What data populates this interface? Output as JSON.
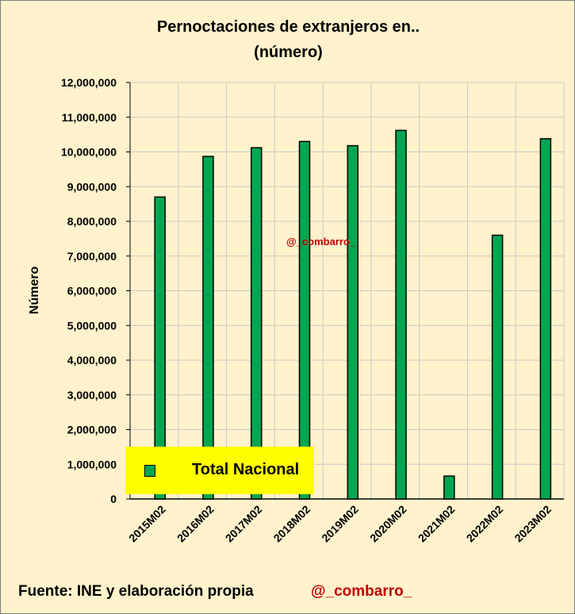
{
  "title_line1": "Pernoctaciones de extranjeros en..",
  "title_line2": "(número)",
  "footer_source": "Fuente: INE  y elaboración propia",
  "footer_handle": "@_combarro_",
  "watermark": "@_combarro_",
  "colors": {
    "background": "#FFF2CC",
    "bar_fill": "#00A650",
    "legend_background": "#FFFF00",
    "handle": "#C00000",
    "grid": "#C8C8C8"
  },
  "chart_data": {
    "type": "bar",
    "title": "Pernoctaciones de extranjeros en.. (número)",
    "ylabel": "Número",
    "xlabel": "",
    "ylim": [
      0,
      12000000
    ],
    "yticks": [
      "0",
      "1,000,000",
      "2,000,000",
      "3,000,000",
      "4,000,000",
      "5,000,000",
      "6,000,000",
      "7,000,000",
      "8,000,000",
      "9,000,000",
      "10,000,000",
      "11,000,000",
      "12,000,000"
    ],
    "categories": [
      "2015M02",
      "2016M02",
      "2017M02",
      "2018M02",
      "2019M02",
      "2020M02",
      "2021M02",
      "2022M02",
      "2023M02"
    ],
    "series": [
      {
        "name": "Total Nacional",
        "values": [
          8700000,
          9870000,
          10120000,
          10300000,
          10180000,
          10620000,
          660000,
          7600000,
          10380000
        ]
      }
    ],
    "grid": true,
    "legend_position": "bottom-left"
  }
}
